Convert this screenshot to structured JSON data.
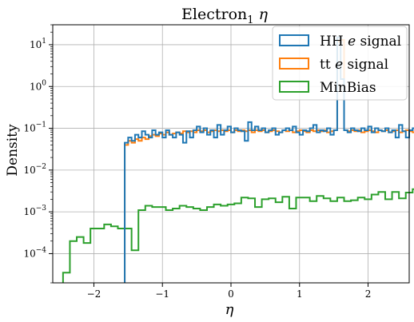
{
  "chart_data": {
    "type": "step-histogram",
    "title": "Electron",
    "title_subscript": "1",
    "title_symbol": "η",
    "xlabel": "η",
    "ylabel": "Density",
    "xlim": [
      -2.6,
      2.6
    ],
    "ylim": [
      2e-05,
      30
    ],
    "yscale": "log",
    "grid": true,
    "legend_position": "top-right",
    "x_ticks": [
      "−2",
      "−1",
      "0",
      "1",
      "2"
    ],
    "x_tick_values": [
      -2,
      -1,
      0,
      1,
      2
    ],
    "y_tick_exponents": [
      -4,
      -3,
      -2,
      -1,
      0,
      1
    ],
    "y_tick_base": "10",
    "series": [
      {
        "name": "HH e signal",
        "name_parts": [
          "HH ",
          "e",
          " signal"
        ],
        "color": "#1f77b4",
        "bin_edges": [
          -1.55,
          1.55
        ],
        "bin_width": 0.05,
        "values": [
          0.045,
          0.06,
          0.05,
          0.07,
          0.06,
          0.085,
          0.07,
          0.06,
          0.09,
          0.07,
          0.08,
          0.06,
          0.09,
          0.07,
          0.06,
          0.08,
          0.07,
          0.045,
          0.085,
          0.06,
          0.09,
          0.11,
          0.08,
          0.1,
          0.07,
          0.09,
          0.06,
          0.12,
          0.07,
          0.09,
          0.11,
          0.08,
          0.1,
          0.09,
          0.085,
          0.05,
          0.14,
          0.09,
          0.11,
          0.09,
          0.1,
          0.08,
          0.09,
          0.1,
          0.07,
          0.08,
          0.09,
          0.1,
          0.09,
          0.11,
          0.08,
          0.07,
          0.09,
          0.085,
          0.1,
          0.12,
          0.08,
          0.09,
          0.085,
          0.1,
          0.07,
          0.09,
          15,
          1.5,
          0.09,
          0.08,
          0.1,
          0.09,
          0.085,
          0.1,
          0.09,
          0.11,
          0.08,
          0.1,
          0.09,
          0.085,
          0.1,
          0.08,
          0.09,
          0.06,
          0.12,
          0.085,
          0.06,
          0.09,
          0.1,
          0.08,
          0.09,
          0.08,
          0.1,
          0.09,
          0.045,
          0.085,
          0.07,
          0.05,
          0.09,
          0.07,
          0.06,
          0.08,
          0.05,
          0.08,
          0.07,
          0.06,
          0.1,
          0.08,
          0.09,
          0.06,
          0.07,
          0.085,
          0.06,
          0.1,
          0.07,
          0.08,
          0.07,
          0.06,
          0.07,
          0.055,
          0.08,
          0.06,
          0.1,
          0.07,
          0.09,
          0.05,
          0.06,
          0.05
        ]
      },
      {
        "name": "tt e signal",
        "name_parts": [
          "tt ",
          "e",
          " signal"
        ],
        "color": "#ff7f0e",
        "bin_edges": [
          -1.55,
          1.55
        ],
        "bin_width": 0.05,
        "values": [
          0.04,
          0.05,
          0.045,
          0.055,
          0.05,
          0.06,
          0.055,
          0.065,
          0.07,
          0.065,
          0.075,
          0.07,
          0.08,
          0.07,
          0.075,
          0.08,
          0.075,
          0.085,
          0.08,
          0.085,
          0.08,
          0.09,
          0.085,
          0.09,
          0.08,
          0.085,
          0.09,
          0.085,
          0.09,
          0.085,
          0.09,
          0.08,
          0.09,
          0.085,
          0.09,
          0.085,
          0.09,
          0.08,
          0.09,
          0.085,
          0.09,
          0.08,
          0.085,
          0.09,
          0.085,
          0.08,
          0.09,
          0.085,
          0.09,
          0.08,
          0.085,
          0.09,
          0.085,
          0.08,
          0.09,
          0.085,
          0.09,
          0.085,
          0.09,
          0.08,
          0.085,
          0.09,
          12,
          13,
          0.09,
          0.085,
          0.09,
          0.085,
          0.09,
          0.08,
          0.085,
          0.09,
          0.085,
          0.08,
          0.09,
          0.085,
          0.09,
          0.08,
          0.085,
          0.09,
          0.08,
          0.085,
          0.09,
          0.085,
          0.08,
          0.09,
          0.085,
          0.09,
          0.08,
          0.085,
          0.09,
          0.085,
          0.08,
          0.085,
          0.08,
          0.085,
          0.08,
          0.075,
          0.08,
          0.075,
          0.07,
          0.075,
          0.07,
          0.065,
          0.07,
          0.065,
          0.06,
          0.065,
          0.06,
          0.055,
          0.06,
          0.05,
          0.055,
          0.05,
          0.045,
          0.05,
          0.045,
          0.04,
          0.05,
          0.045,
          0.04,
          0.045,
          0.04,
          0.045
        ]
      },
      {
        "name": "MinBias",
        "color": "#2ca02c",
        "bin_edges": [
          -2.45,
          2.4
        ],
        "bin_width": 0.1,
        "values": [
          3.5e-05,
          0.0002,
          0.00025,
          0.00018,
          0.0004,
          0.0004,
          0.0005,
          0.00045,
          0.0004,
          0.0004,
          0.00012,
          0.0011,
          0.0014,
          0.0013,
          0.0013,
          0.0011,
          0.0012,
          0.0014,
          0.0013,
          0.0012,
          0.0011,
          0.0013,
          0.0015,
          0.0014,
          0.0015,
          0.0016,
          0.0022,
          0.0021,
          0.0013,
          0.002,
          0.0021,
          0.0017,
          0.0023,
          0.0012,
          0.0022,
          0.0022,
          0.0018,
          0.0024,
          0.0021,
          0.0018,
          0.0022,
          0.0018,
          0.0019,
          0.0022,
          0.002,
          0.0026,
          0.003,
          0.002,
          0.003,
          0.0021,
          0.0029,
          0.0035,
          0.0026,
          0.0028,
          0.0021,
          0.0023,
          0.0024,
          0.0024,
          0.0033,
          0.003,
          0.0026,
          0.0029,
          0.0036,
          0.0031,
          0.0038,
          0.0042,
          0.0045,
          0.0051,
          0.0038,
          0.0055,
          0.004,
          0.0031,
          0.0033,
          0.0035,
          0.0028,
          0.003,
          0.0029,
          0.0031,
          0.0028,
          0.0024,
          0.0016,
          0.0014,
          0.0013,
          0.0015,
          0.0012,
          0.0011,
          0.0012,
          0.001,
          0.0012,
          0.0011,
          0.0013,
          0.0012,
          0.0011,
          0.001,
          0.001,
          0.0009,
          0.0008,
          0.0007,
          0.0005,
          0.0004,
          0.0003,
          0.0002,
          0.0002,
          0.00015,
          0.0002,
          0.00015,
          0.00012,
          0.0001,
          8e-05,
          6e-05,
          4e-05,
          3e-05
        ]
      }
    ]
  }
}
